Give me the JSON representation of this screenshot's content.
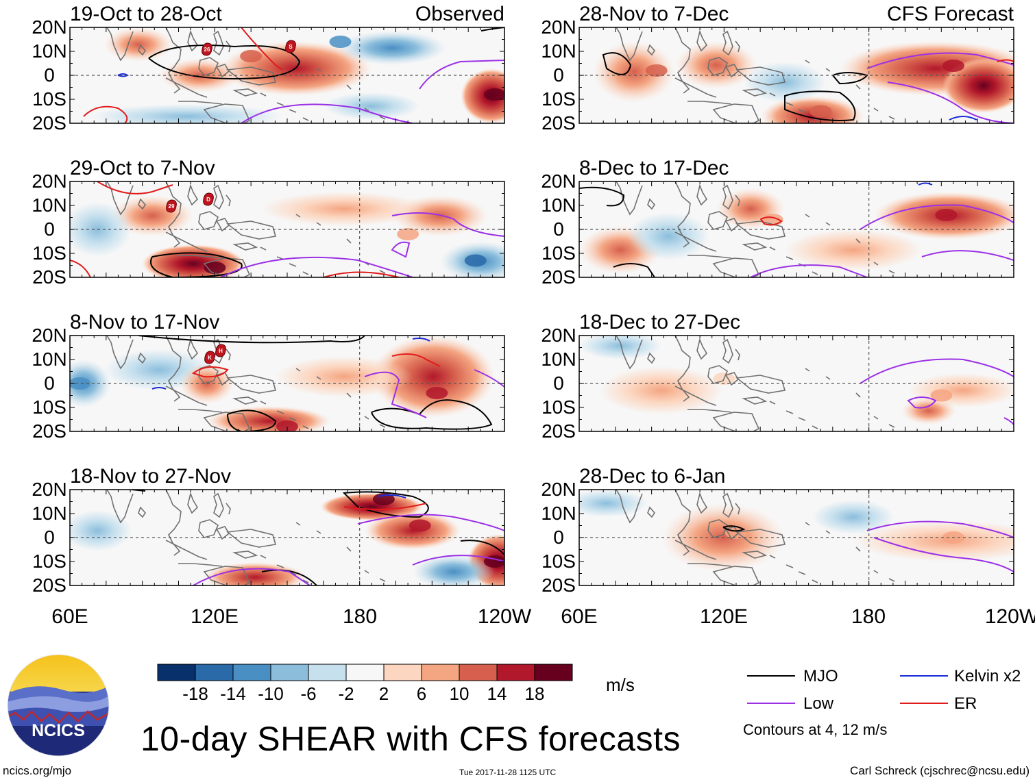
{
  "title": "10-day SHEAR with CFS forecasts",
  "units": "m/s",
  "contours_note": "Contours at 4, 12 m/s",
  "footer": {
    "url": "ncics.org/mjo",
    "timestamp": "Tue 2017-11-28 1125 UTC",
    "author": "Carl Schreck (cjschrec@ncsu.edu)"
  },
  "logo_text": "NCICS",
  "column_labels": {
    "left": "Observed",
    "right": "CFS Forecast"
  },
  "colorbar": {
    "colors": [
      "#08306b",
      "#2a6aa9",
      "#4a8fc4",
      "#8cbedc",
      "#c6e0ee",
      "#f7f7f7",
      "#fcd6c0",
      "#f4a582",
      "#d6604d",
      "#b2182b",
      "#67001f"
    ],
    "tick_labels": [
      "-18",
      "-14",
      "-10",
      "-6",
      "-2",
      "2",
      "6",
      "10",
      "14",
      "18"
    ]
  },
  "legend": [
    {
      "label": "MJO",
      "color": "#000000"
    },
    {
      "label": "Kelvin x2",
      "color": "#1a2ad8"
    },
    {
      "label": "Low",
      "color": "#9b30e6"
    },
    {
      "label": "ER",
      "color": "#e01b1b"
    }
  ],
  "storm_labels": [
    "26",
    "S",
    "29",
    "D",
    "K",
    "H"
  ],
  "chart_data": [
    {
      "type": "heatmap",
      "title": "19-Oct to 28-Oct",
      "source": "Observed",
      "xlabel": "",
      "ylabel": "",
      "x_ticks": [
        "60E",
        "120E",
        "180",
        "120W"
      ],
      "y_ticks": [
        "20N",
        "10N",
        "0",
        "10S",
        "20S"
      ],
      "xlim": [
        60,
        240
      ],
      "ylim": [
        -20,
        20
      ],
      "colorbar_range_ms": [
        -18,
        18
      ],
      "notable_anomalies": [
        {
          "lon": 135,
          "lat": 8,
          "value": 10
        },
        {
          "lon": 236,
          "lat": -8,
          "value": 18
        },
        {
          "lon": 172,
          "lat": 14,
          "value": -10
        }
      ]
    },
    {
      "type": "heatmap",
      "title": "28-Nov to 7-Dec",
      "source": "CFS Forecast",
      "xlabel": "",
      "ylabel": "",
      "x_ticks": [
        "60E",
        "120E",
        "180",
        "120W"
      ],
      "y_ticks": [
        "20N",
        "10N",
        "0",
        "10S",
        "20S"
      ],
      "xlim": [
        60,
        240
      ],
      "ylim": [
        -20,
        20
      ],
      "colorbar_range_ms": [
        -18,
        18
      ],
      "notable_anomalies": [
        {
          "lon": 215,
          "lat": 4,
          "value": 14
        },
        {
          "lon": 160,
          "lat": -15,
          "value": 10
        },
        {
          "lon": 92,
          "lat": 2,
          "value": 10
        }
      ]
    },
    {
      "type": "heatmap",
      "title": "29-Oct to 7-Nov",
      "source": "Observed",
      "xlabel": "",
      "ylabel": "",
      "x_ticks": [
        "60E",
        "120E",
        "180",
        "120W"
      ],
      "y_ticks": [
        "20N",
        "10N",
        "0",
        "10S",
        "20S"
      ],
      "xlim": [
        60,
        240
      ],
      "ylim": [
        -20,
        20
      ],
      "colorbar_range_ms": [
        -18,
        18
      ],
      "notable_anomalies": [
        {
          "lon": 120,
          "lat": -16,
          "value": 18
        },
        {
          "lon": 228,
          "lat": -13,
          "value": -14
        },
        {
          "lon": 200,
          "lat": -2,
          "value": 6
        }
      ]
    },
    {
      "type": "heatmap",
      "title": "8-Dec to 17-Dec",
      "source": "CFS Forecast",
      "xlabel": "",
      "ylabel": "",
      "x_ticks": [
        "60E",
        "120E",
        "180",
        "120W"
      ],
      "y_ticks": [
        "20N",
        "10N",
        "0",
        "10S",
        "20S"
      ],
      "xlim": [
        60,
        240
      ],
      "ylim": [
        -20,
        20
      ],
      "colorbar_range_ms": [
        -18,
        18
      ],
      "notable_anomalies": [
        {
          "lon": 212,
          "lat": 6,
          "value": 14
        },
        {
          "lon": 140,
          "lat": 4,
          "value": 6
        }
      ]
    },
    {
      "type": "heatmap",
      "title": "8-Nov to 17-Nov",
      "source": "Observed",
      "xlabel": "",
      "ylabel": "",
      "x_ticks": [
        "60E",
        "120E",
        "180",
        "120W"
      ],
      "y_ticks": [
        "20N",
        "10N",
        "0",
        "10S",
        "20S"
      ],
      "xlim": [
        60,
        240
      ],
      "ylim": [
        -20,
        20
      ],
      "colorbar_range_ms": [
        -18,
        18
      ],
      "notable_anomalies": [
        {
          "lon": 212,
          "lat": -4,
          "value": 14
        },
        {
          "lon": 150,
          "lat": -18,
          "value": 14
        },
        {
          "lon": 64,
          "lat": 0,
          "value": -10
        }
      ]
    },
    {
      "type": "heatmap",
      "title": "18-Dec to 27-Dec",
      "source": "CFS Forecast",
      "xlabel": "",
      "ylabel": "",
      "x_ticks": [
        "60E",
        "120E",
        "180",
        "120W"
      ],
      "y_ticks": [
        "20N",
        "10N",
        "0",
        "10S",
        "20S"
      ],
      "xlim": [
        60,
        240
      ],
      "ylim": [
        -20,
        20
      ],
      "colorbar_range_ms": [
        -18,
        18
      ],
      "notable_anomalies": [
        {
          "lon": 210,
          "lat": -5,
          "value": 6
        },
        {
          "lon": 120,
          "lat": 2,
          "value": 2
        }
      ]
    },
    {
      "type": "heatmap",
      "title": "18-Nov to 27-Nov",
      "source": "Observed",
      "xlabel": "",
      "ylabel": "",
      "x_ticks": [
        "60E",
        "120E",
        "180",
        "120W"
      ],
      "y_ticks": [
        "20N",
        "10N",
        "0",
        "10S",
        "20S"
      ],
      "xlim": [
        60,
        240
      ],
      "ylim": [
        -20,
        20
      ],
      "colorbar_range_ms": [
        -18,
        18
      ],
      "notable_anomalies": [
        {
          "lon": 190,
          "lat": 16,
          "value": 18
        },
        {
          "lon": 236,
          "lat": -10,
          "value": 18
        },
        {
          "lon": 205,
          "lat": 5,
          "value": 14
        }
      ]
    },
    {
      "type": "heatmap",
      "title": "28-Dec to 6-Jan",
      "source": "CFS Forecast",
      "xlabel": "",
      "ylabel": "",
      "x_ticks": [
        "60E",
        "120E",
        "180",
        "120W"
      ],
      "y_ticks": [
        "20N",
        "10N",
        "0",
        "10S",
        "20S"
      ],
      "xlim": [
        60,
        240
      ],
      "ylim": [
        -20,
        20
      ],
      "colorbar_range_ms": [
        -18,
        18
      ],
      "notable_anomalies": [
        {
          "lon": 125,
          "lat": 2,
          "value": 6
        },
        {
          "lon": 215,
          "lat": 0,
          "value": 6
        }
      ]
    }
  ]
}
